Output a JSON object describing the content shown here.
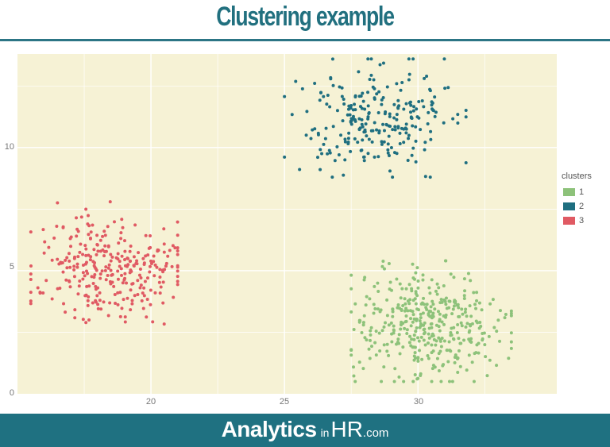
{
  "header": {
    "title": "Clustering example"
  },
  "footer": {
    "brand_main": "Analytics",
    "brand_in": "in",
    "brand_hr": "HR",
    "brand_com": ".com"
  },
  "colors": {
    "cluster1": "#8dc27a",
    "cluster2": "#1f6f80",
    "cluster3": "#e05a63",
    "panel": "#f6f2d5",
    "accent": "#1f7181"
  },
  "chart_data": {
    "type": "scatter",
    "title": "Clustering example",
    "xlabel": "",
    "ylabel": "",
    "xlim": [
      15.0,
      35.2
    ],
    "ylim": [
      0,
      13.8
    ],
    "x_ticks": [
      "20",
      "25",
      "30"
    ],
    "y_ticks": [
      "0",
      "5",
      "10"
    ],
    "grid": true,
    "legend": {
      "title": "clusters",
      "position": "right",
      "entries": [
        "1",
        "2",
        "3"
      ]
    },
    "series": [
      {
        "name": "1",
        "color": "#8dc27a",
        "center": [
          30.3,
          2.8
        ],
        "spread": [
          1.4,
          1.1
        ],
        "n": 400,
        "x_range": [
          27.5,
          33.5
        ],
        "y_range": [
          0.5,
          5.4
        ]
      },
      {
        "name": "2",
        "color": "#1f6f80",
        "center": [
          28.4,
          11.3
        ],
        "spread": [
          1.4,
          1.1
        ],
        "n": 250,
        "x_range": [
          25.0,
          31.8
        ],
        "y_range": [
          8.8,
          13.6
        ]
      },
      {
        "name": "3",
        "color": "#e05a63",
        "center": [
          18.4,
          5.0
        ],
        "spread": [
          1.4,
          1.1
        ],
        "n": 300,
        "x_range": [
          15.5,
          21.0
        ],
        "y_range": [
          1.6,
          7.8
        ]
      }
    ]
  },
  "axis": {
    "y": [
      "0",
      "5",
      "10"
    ],
    "x": [
      "20",
      "25",
      "30"
    ]
  },
  "legend": {
    "title": "clusters",
    "items": [
      "1",
      "2",
      "3"
    ]
  }
}
